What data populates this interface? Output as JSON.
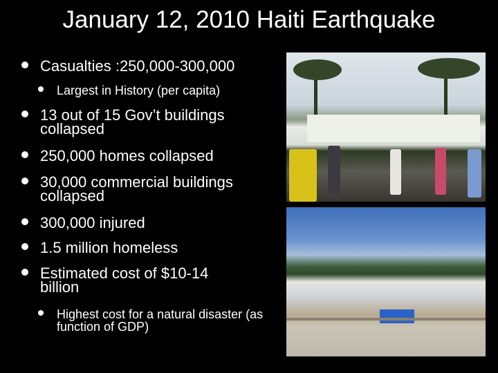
{
  "slide": {
    "title": "January 12, 2010 Haiti Earthquake",
    "bullets": [
      {
        "level": 1,
        "text": "Casualties :250,000-300,000"
      },
      {
        "level": 2,
        "text": "Largest in History (per capita)"
      },
      {
        "level": 1,
        "text": "13 out of 15 Gov’t buildings collapsed"
      },
      {
        "level": 1,
        "text": "250,000 homes collapsed"
      },
      {
        "level": 1,
        "text": "30,000 commercial buildings collapsed"
      },
      {
        "level": 1,
        "text": "300,000 injured"
      },
      {
        "level": 1,
        "text": "1.5 million homeless"
      },
      {
        "level": 1,
        "text": "Estimated cost of $10-14 billion"
      },
      {
        "level": 2,
        "text": "Highest cost for a natural disaster (as function of GDP)"
      }
    ],
    "images": [
      {
        "name": "collapsed-national-palace-photo"
      },
      {
        "name": "tent-camp-photo"
      }
    ]
  }
}
